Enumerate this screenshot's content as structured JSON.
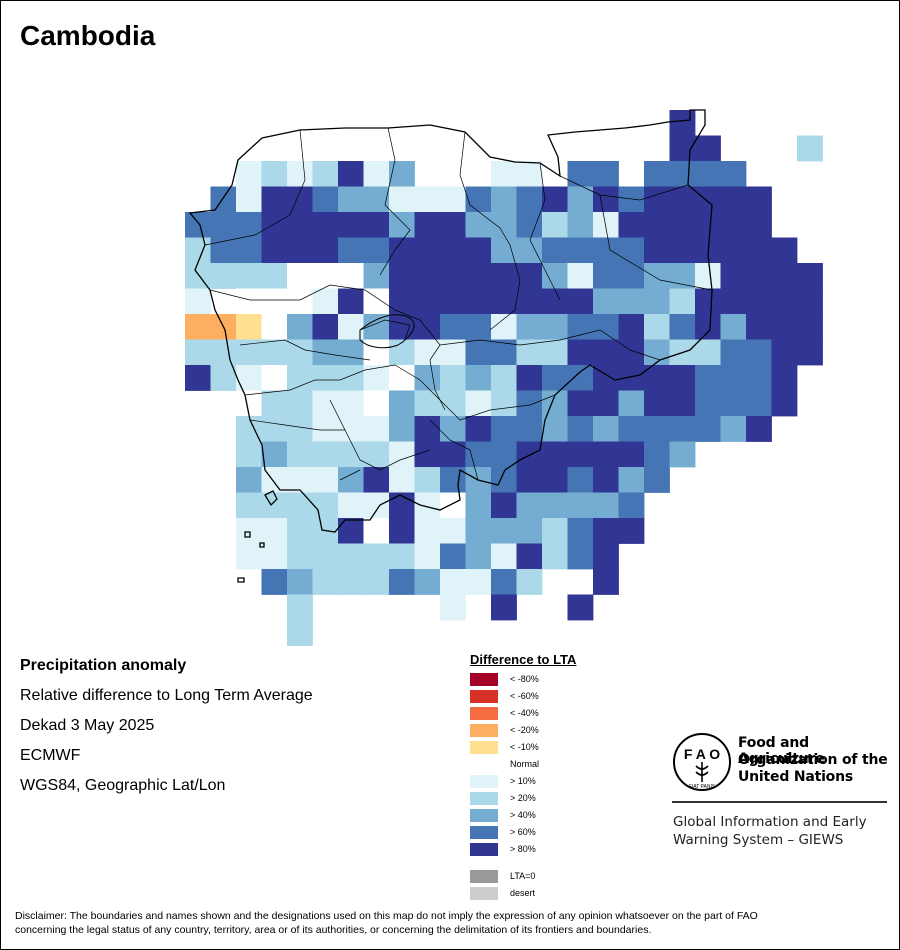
{
  "title": "Cambodia",
  "meta": {
    "heading": "Precipitation anomaly",
    "line1": "Relative difference to Long Term Average",
    "line2": "Dekad 3 May 2025",
    "line3": "ECMWF",
    "line4": "WGS84, Geographic Lat/Lon"
  },
  "legend": {
    "title": "Difference to LTA",
    "items": [
      {
        "label": "< -80%",
        "color": "#a50026"
      },
      {
        "label": "< -60%",
        "color": "#d73027"
      },
      {
        "label": "< -40%",
        "color": "#f46d43"
      },
      {
        "label": "< -20%",
        "color": "#fdae61"
      },
      {
        "label": "< -10%",
        "color": "#fee090"
      },
      {
        "label": "Normal",
        "color": "#ffffff"
      },
      {
        "label": "> 10%",
        "color": "#e0f3f8"
      },
      {
        "label": "> 20%",
        "color": "#abd9e9"
      },
      {
        "label": "> 40%",
        "color": "#74add1"
      },
      {
        "label": "> 60%",
        "color": "#4575b4"
      },
      {
        "label": "> 80%",
        "color": "#313695"
      },
      {
        "label": "LTA=0",
        "color": "#999999"
      },
      {
        "label": "desert",
        "color": "#cccccc"
      }
    ]
  },
  "organization": {
    "name_line1": "Food and Agriculture",
    "name_line2": "Organization of the",
    "name_line3": "United Nations",
    "emblem_text": "FIAT PANIS",
    "system_line1": "Global Information and Early",
    "system_line2": "Warning System – GIEWS"
  },
  "disclaimer_line1": "Disclaimer: The boundaries and names shown and the designations used on this map do not imply the expression of any opinion whatsoever on the part of FAO",
  "disclaimer_line2": "concerning the legal status of any country, territory, area or of its authorities, or concerning the delimitation of its frontiers and boundaries.",
  "anomaly_grid": {
    "codes": "N=Normal, a=>10%, b=>20%, c=>40%, d=>60%, e=>80%, y=<-10%, o=<-20%",
    "rows": [
      "...................e.....",
      "...................ee...b",
      "..ababeac...aa.dd.dddd...",
      ".daeedccaaadcdecedeeeee..",
      "dddeeeeeceeccdbcaeeeeee..",
      "bddeeeddeeeeccddddeeeeee.",
      "bbbbNNNceeeeeecaddccaeeee",
      "a.NNNaeNeeeeeeeecccbeeeee",
      "ooyNceaceeddaccddebdeceee",
      "bbbbbccNbaaddbbeeecbbddee",
      "ebaNbbbaNcbcbeddeeeeddde.",
      "..NbbaaNcbbabdceeceeddde.",
      "..bbbaaaceceddcdcddddce..",
      "..bcbbbbaeeddeeeeedc.....",
      "..caaaceabdcdeedecd......",
      "..bbbbaaeaNceccccd.......",
      "..aabbeNeaacccbdee.......",
      "..aabbbbbadcaebde........",
      "...dcbbbdcaadb..e........",
      "....b.....a.e..e.........",
      "....b.............."
    ]
  }
}
